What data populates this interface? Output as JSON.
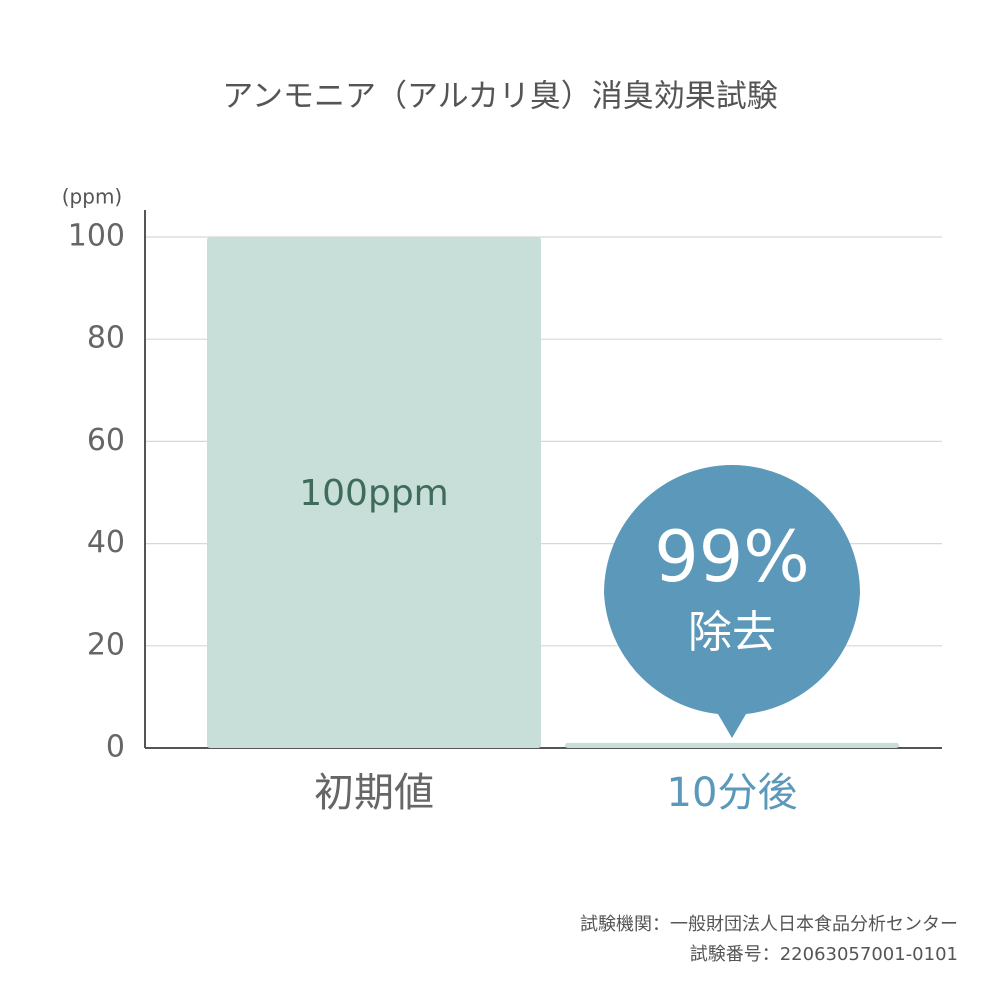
{
  "chart_data": {
    "type": "bar",
    "title": "アンモニア（アルカリ臭）消臭効果試験",
    "y_label": "(ppm)",
    "categories": [
      "初期値",
      "10分後"
    ],
    "values": [
      100,
      1
    ],
    "value_labels": [
      "100ppm",
      null
    ],
    "color": "#c8ded8",
    "ylim": [
      0,
      100
    ],
    "yticks": [
      0,
      20,
      40,
      60,
      80,
      100
    ],
    "grid": true,
    "annotation": {
      "text": "99%",
      "subtext": "除去"
    },
    "footnotes": [
      "試験機関：一般財団法人日本食品分析センター",
      "試験番号：22063057001-0101"
    ]
  }
}
